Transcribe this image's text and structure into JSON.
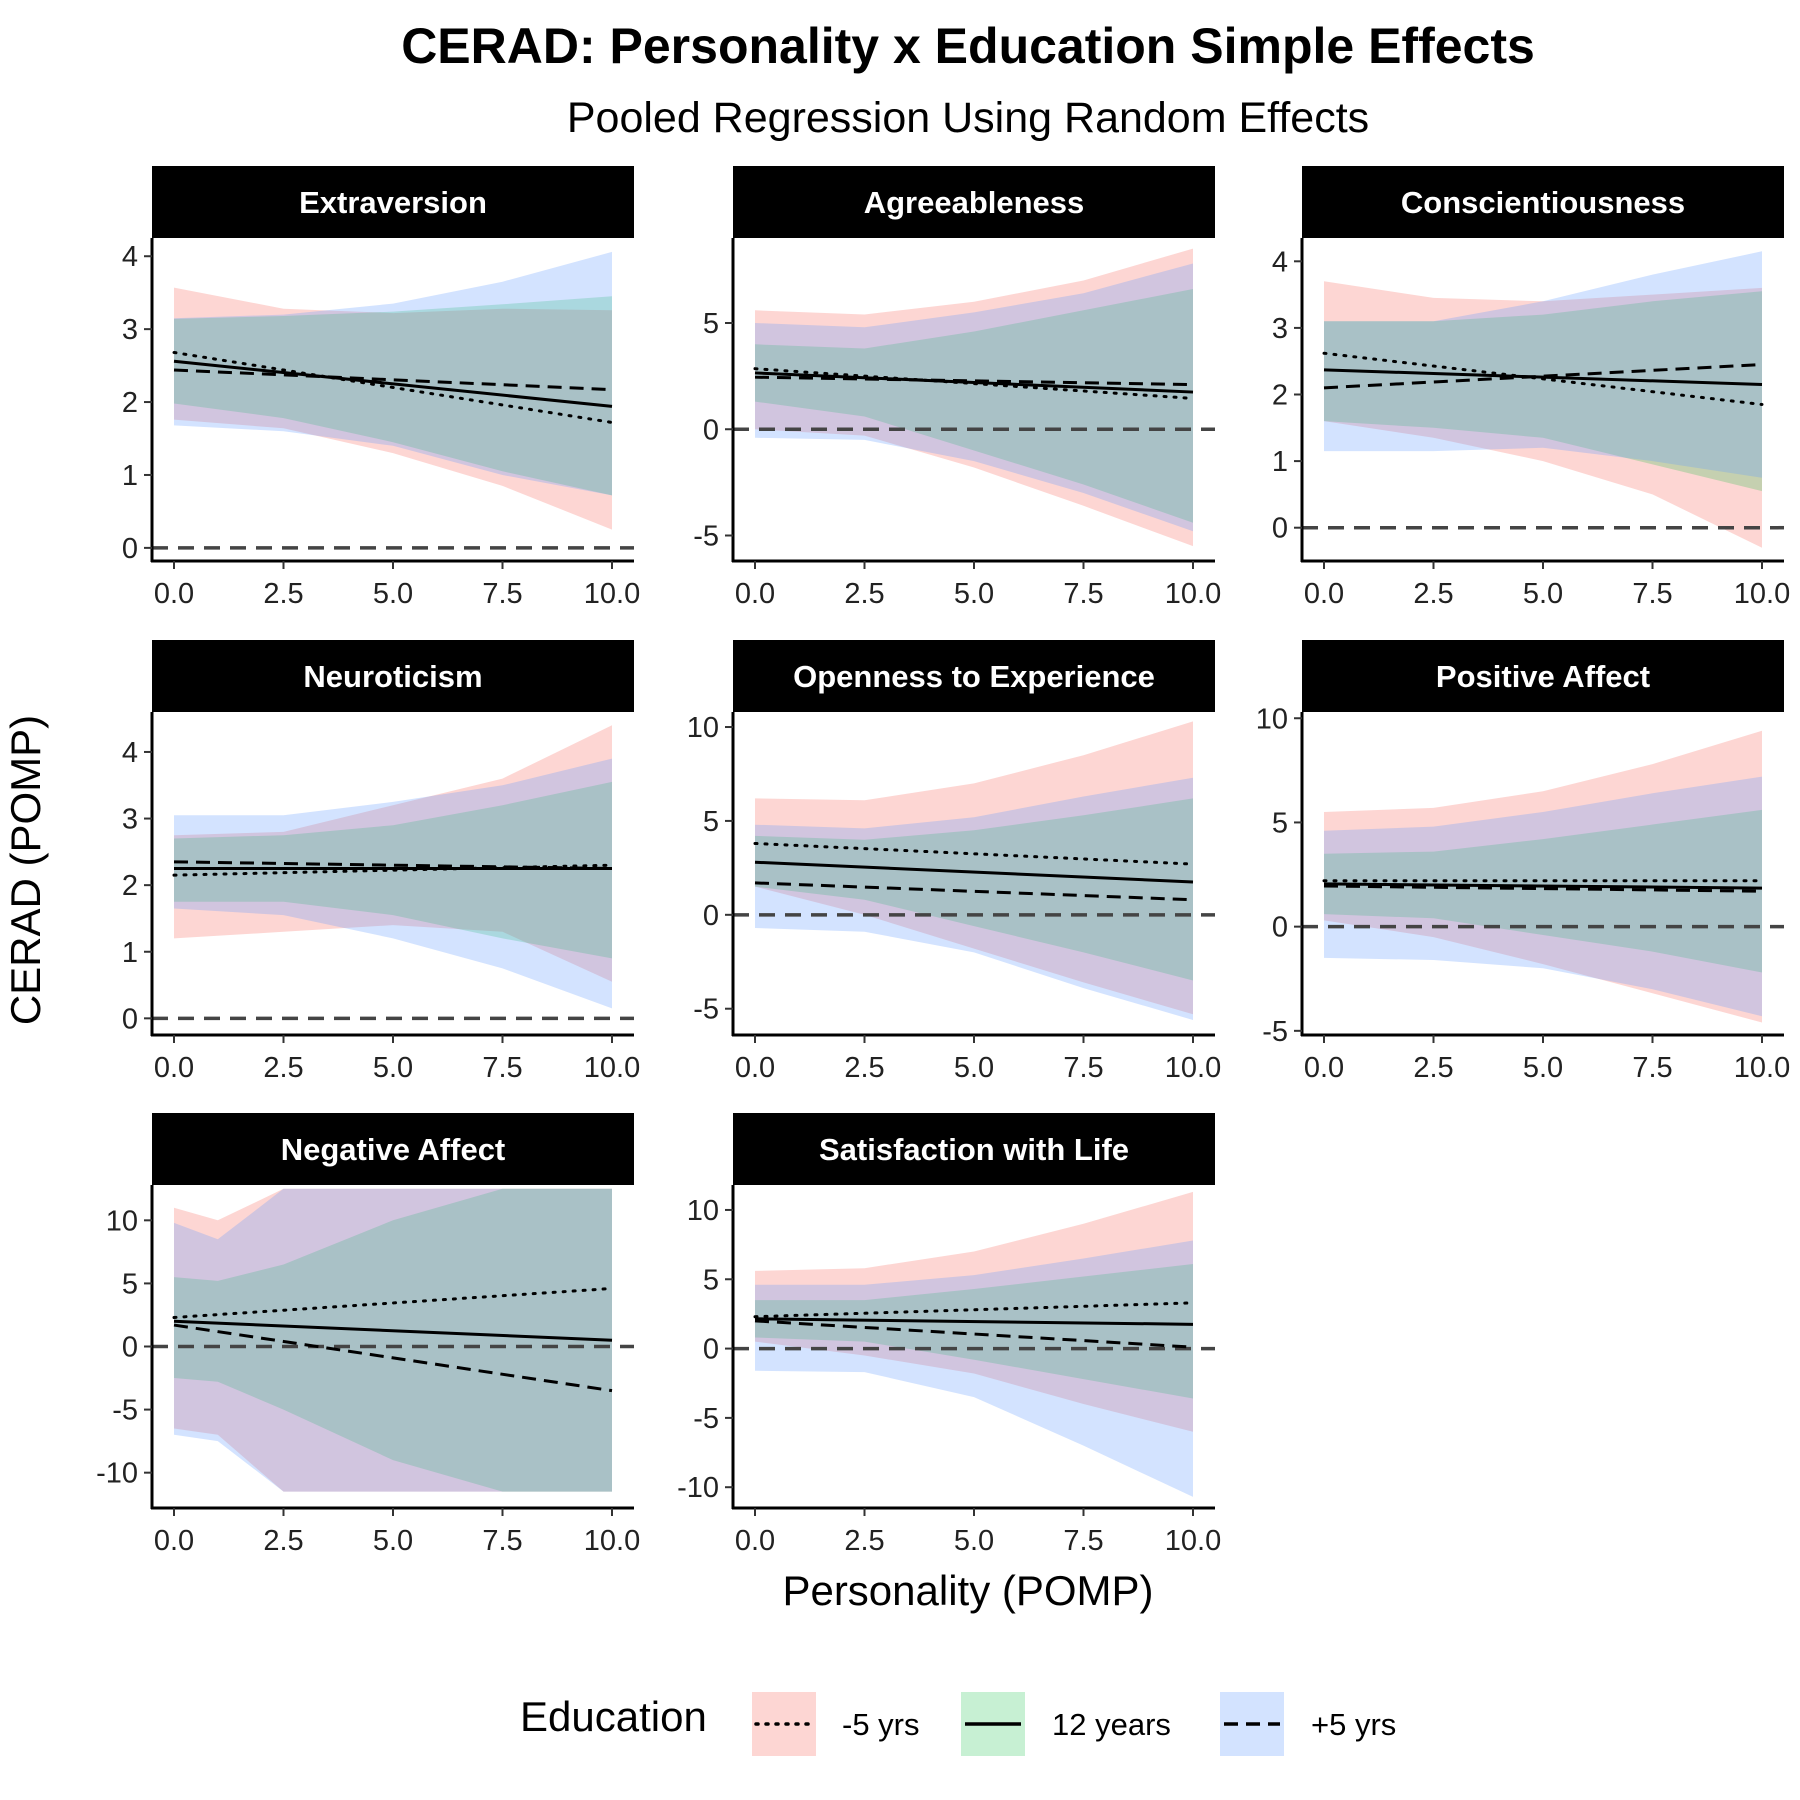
{
  "title": "CERAD: Personality x Education Simple Effects",
  "subtitle": "Pooled Regression Using Random Effects",
  "x_axis_title": "Personality (POMP)",
  "y_axis_title": "CERAD (POMP)",
  "legend": {
    "title": "Education",
    "items": [
      {
        "label": "-5 yrs",
        "line": "dotted",
        "fill": "#f8766d"
      },
      {
        "label": "12 years",
        "line": "solid",
        "fill": "#00ba38"
      },
      {
        "label": "+5 yrs",
        "line": "dashed",
        "fill": "#619cff"
      }
    ]
  },
  "colors": {
    "minus5_band": "#f8766d",
    "twelve_band": "#00ba38",
    "plus5_band": "#619cff",
    "strip_background": "#000000",
    "reference_line": "#444444"
  },
  "chart_data": {
    "type": "line",
    "facet_layout": {
      "columns": 3,
      "rows": 3
    },
    "series_names": [
      "-5 yrs",
      "12 years",
      "+5 yrs"
    ],
    "reference_line_y": 0,
    "panels": [
      {
        "label": "Extraversion",
        "x_ticks": [
          "0.0",
          "2.5",
          "5.0",
          "7.5",
          "10.0"
        ],
        "y_ticks": [
          0,
          1,
          2,
          3,
          4
        ],
        "ylim": [
          -0.18,
          4.25
        ],
        "lines": {
          "minus5": [
            2.68,
            1.72
          ],
          "twelve": [
            2.56,
            1.94
          ],
          "plus5": [
            2.44,
            2.17
          ]
        },
        "bands": {
          "minus5": {
            "x": [
              0,
              2.5,
              5,
              7.5,
              10
            ],
            "upper": [
              3.57,
              3.28,
              3.22,
              3.28,
              3.26
            ],
            "lower": [
              1.76,
              1.64,
              1.3,
              0.85,
              0.25
            ]
          },
          "twelve": {
            "x": [
              0,
              2.5,
              5,
              7.5,
              10
            ],
            "upper": [
              3.14,
              3.18,
              3.24,
              3.34,
              3.45
            ],
            "lower": [
              1.98,
              1.78,
              1.45,
              1.05,
              0.72
            ]
          },
          "plus5": {
            "x": [
              0,
              2.5,
              5,
              7.5,
              10
            ],
            "upper": [
              3.15,
              3.2,
              3.35,
              3.65,
              4.06
            ],
            "lower": [
              1.68,
              1.6,
              1.4,
              1.0,
              0.72
            ]
          }
        }
      },
      {
        "label": "Agreeableness",
        "x_ticks": [
          "0.0",
          "2.5",
          "5.0",
          "7.5",
          "10.0"
        ],
        "y_ticks": [
          -5,
          0,
          5
        ],
        "ylim": [
          -6.2,
          9.0
        ],
        "lines": {
          "minus5": [
            2.85,
            1.45
          ],
          "twelve": [
            2.65,
            1.75
          ],
          "plus5": [
            2.45,
            2.1
          ]
        },
        "bands": {
          "minus5": {
            "x": [
              0,
              2.5,
              5,
              7.5,
              10
            ],
            "upper": [
              5.6,
              5.4,
              6.0,
              7.0,
              8.5
            ],
            "lower": [
              0.0,
              -0.3,
              -1.8,
              -3.6,
              -5.5
            ]
          },
          "twelve": {
            "x": [
              0,
              2.5,
              5,
              7.5,
              10
            ],
            "upper": [
              4.0,
              3.8,
              4.6,
              5.6,
              6.6
            ],
            "lower": [
              1.3,
              0.6,
              -1.0,
              -2.6,
              -4.4
            ]
          },
          "plus5": {
            "x": [
              0,
              2.5,
              5,
              7.5,
              10
            ],
            "upper": [
              5.0,
              4.8,
              5.5,
              6.4,
              7.8
            ],
            "lower": [
              -0.4,
              -0.5,
              -1.5,
              -3.0,
              -4.8
            ]
          }
        }
      },
      {
        "label": "Conscientiousness",
        "x_ticks": [
          "0.0",
          "2.5",
          "5.0",
          "7.5",
          "10.0"
        ],
        "y_ticks": [
          0,
          1,
          2,
          3,
          4
        ],
        "ylim": [
          -0.5,
          4.35
        ],
        "lines": {
          "minus5": [
            2.62,
            1.85
          ],
          "twelve": [
            2.37,
            2.15
          ],
          "plus5": [
            2.1,
            2.45
          ]
        },
        "bands": {
          "minus5": {
            "x": [
              0,
              2.5,
              5,
              7.5,
              10
            ],
            "upper": [
              3.7,
              3.45,
              3.4,
              3.5,
              3.6
            ],
            "lower": [
              1.6,
              1.35,
              1.0,
              0.5,
              -0.3
            ]
          },
          "twelve": {
            "x": [
              0,
              2.5,
              5,
              7.5,
              10
            ],
            "upper": [
              3.1,
              3.1,
              3.2,
              3.4,
              3.55
            ],
            "lower": [
              1.6,
              1.5,
              1.35,
              0.95,
              0.55
            ]
          },
          "plus5": {
            "x": [
              0,
              2.5,
              5,
              7.5,
              10
            ],
            "upper": [
              3.1,
              3.1,
              3.4,
              3.8,
              4.15
            ],
            "lower": [
              1.15,
              1.15,
              1.2,
              1.0,
              0.75
            ]
          }
        }
      },
      {
        "label": "Neuroticism",
        "x_ticks": [
          "0.0",
          "2.5",
          "5.0",
          "7.5",
          "10.0"
        ],
        "y_ticks": [
          0,
          1,
          2,
          3,
          4
        ],
        "ylim": [
          -0.25,
          4.6
        ],
        "lines": {
          "minus5": [
            2.15,
            2.3
          ],
          "twelve": [
            2.25,
            2.25
          ],
          "plus5": [
            2.35,
            2.25
          ]
        },
        "bands": {
          "minus5": {
            "x": [
              0,
              2.5,
              5,
              7.5,
              10
            ],
            "upper": [
              2.75,
              2.8,
              3.2,
              3.6,
              4.4
            ],
            "lower": [
              1.2,
              1.3,
              1.4,
              1.3,
              0.55
            ]
          },
          "twelve": {
            "x": [
              0,
              2.5,
              5,
              7.5,
              10
            ],
            "upper": [
              2.7,
              2.75,
              2.9,
              3.2,
              3.55
            ],
            "lower": [
              1.75,
              1.75,
              1.55,
              1.2,
              0.9
            ]
          },
          "plus5": {
            "x": [
              0,
              2.5,
              5,
              7.5,
              10
            ],
            "upper": [
              3.05,
              3.05,
              3.25,
              3.5,
              3.9
            ],
            "lower": [
              1.65,
              1.55,
              1.2,
              0.75,
              0.15
            ]
          }
        }
      },
      {
        "label": "Openness to Experience",
        "x_ticks": [
          "0.0",
          "2.5",
          "5.0",
          "7.5",
          "10.0"
        ],
        "y_ticks": [
          -5,
          0,
          5,
          10
        ],
        "ylim": [
          -6.4,
          10.8
        ],
        "lines": {
          "minus5": [
            3.8,
            2.7
          ],
          "twelve": [
            2.8,
            1.75
          ],
          "plus5": [
            1.7,
            0.8
          ]
        },
        "bands": {
          "minus5": {
            "x": [
              0,
              2.5,
              5,
              7.5,
              10
            ],
            "upper": [
              6.2,
              6.1,
              7.0,
              8.5,
              10.3
            ],
            "lower": [
              1.5,
              0.0,
              -1.8,
              -3.6,
              -5.3
            ]
          },
          "twelve": {
            "x": [
              0,
              2.5,
              5,
              7.5,
              10
            ],
            "upper": [
              4.2,
              4.0,
              4.5,
              5.3,
              6.2
            ],
            "lower": [
              1.5,
              0.8,
              -0.6,
              -2.0,
              -3.5
            ]
          },
          "plus5": {
            "x": [
              0,
              2.5,
              5,
              7.5,
              10
            ],
            "upper": [
              4.8,
              4.6,
              5.2,
              6.3,
              7.3
            ],
            "lower": [
              -0.7,
              -0.9,
              -2.0,
              -3.9,
              -5.6
            ]
          }
        }
      },
      {
        "label": "Positive Affect",
        "x_ticks": [
          "0.0",
          "2.5",
          "5.0",
          "7.5",
          "10.0"
        ],
        "y_ticks": [
          -5,
          0,
          5,
          10
        ],
        "ylim": [
          -5.2,
          10.3
        ],
        "lines": {
          "minus5": [
            2.2,
            2.2
          ],
          "twelve": [
            2.05,
            1.85
          ],
          "plus5": [
            1.95,
            1.7
          ]
        },
        "bands": {
          "minus5": {
            "x": [
              0,
              2.5,
              5,
              7.5,
              10
            ],
            "upper": [
              5.5,
              5.7,
              6.5,
              7.8,
              9.4
            ],
            "lower": [
              0.3,
              -0.5,
              -1.8,
              -3.2,
              -4.6
            ]
          },
          "twelve": {
            "x": [
              0,
              2.5,
              5,
              7.5,
              10
            ],
            "upper": [
              3.5,
              3.6,
              4.2,
              4.9,
              5.6
            ],
            "lower": [
              0.6,
              0.4,
              -0.4,
              -1.2,
              -2.2
            ]
          },
          "plus5": {
            "x": [
              0,
              2.5,
              5,
              7.5,
              10
            ],
            "upper": [
              4.6,
              4.8,
              5.5,
              6.4,
              7.2
            ],
            "lower": [
              -1.5,
              -1.6,
              -2.0,
              -3.0,
              -4.3
            ]
          }
        }
      },
      {
        "label": "Negative Affect",
        "x_ticks": [
          "0.0",
          "2.5",
          "5.0",
          "7.5",
          "10.0"
        ],
        "y_ticks": [
          -10,
          -5,
          0,
          5,
          10
        ],
        "ylim": [
          -12.8,
          12.8
        ],
        "lines": {
          "minus5": [
            2.3,
            4.6
          ],
          "twelve": [
            2.0,
            0.5
          ],
          "plus5": [
            1.7,
            -3.5
          ]
        },
        "bands": {
          "minus5": {
            "x": [
              0,
              1,
              2.5,
              5,
              7.5,
              10
            ],
            "upper": [
              11.0,
              10.0,
              12.5,
              12.5,
              12.5,
              12.5
            ],
            "lower": [
              -6.5,
              -7.0,
              -11.5,
              -11.5,
              -11.5,
              -11.5
            ]
          },
          "twelve": {
            "x": [
              0,
              1,
              2.5,
              5,
              7.5,
              10
            ],
            "upper": [
              5.5,
              5.2,
              6.5,
              10.0,
              12.5,
              12.5
            ],
            "lower": [
              -2.5,
              -2.8,
              -5.0,
              -9.0,
              -11.5,
              -11.5
            ]
          },
          "plus5": {
            "x": [
              0,
              1,
              2.5,
              5,
              7.5,
              10
            ],
            "upper": [
              9.8,
              8.5,
              12.5,
              12.5,
              12.5,
              12.5
            ],
            "lower": [
              -7.0,
              -7.5,
              -11.5,
              -11.5,
              -11.5,
              -11.5
            ]
          }
        }
      },
      {
        "label": "Satisfaction with Life",
        "x_ticks": [
          "0.0",
          "2.5",
          "5.0",
          "7.5",
          "10.0"
        ],
        "y_ticks": [
          -10,
          -5,
          0,
          5,
          10
        ],
        "ylim": [
          -11.5,
          11.8
        ],
        "lines": {
          "minus5": [
            2.3,
            3.3
          ],
          "twelve": [
            2.15,
            1.75
          ],
          "plus5": [
            2.0,
            0.1
          ]
        },
        "bands": {
          "minus5": {
            "x": [
              0,
              2.5,
              5,
              7.5,
              10
            ],
            "upper": [
              5.6,
              5.8,
              7.0,
              9.0,
              11.3
            ],
            "lower": [
              0.5,
              -0.5,
              -1.8,
              -4.0,
              -6.0
            ]
          },
          "twelve": {
            "x": [
              0,
              2.5,
              5,
              7.5,
              10
            ],
            "upper": [
              3.5,
              3.5,
              4.3,
              5.2,
              6.1
            ],
            "lower": [
              0.8,
              0.5,
              -0.8,
              -2.2,
              -3.6
            ]
          },
          "plus5": {
            "x": [
              0,
              2.5,
              5,
              7.5,
              10
            ],
            "upper": [
              4.6,
              4.6,
              5.3,
              6.5,
              7.8
            ],
            "lower": [
              -1.6,
              -1.7,
              -3.5,
              -7.0,
              -10.7
            ]
          }
        }
      }
    ]
  }
}
